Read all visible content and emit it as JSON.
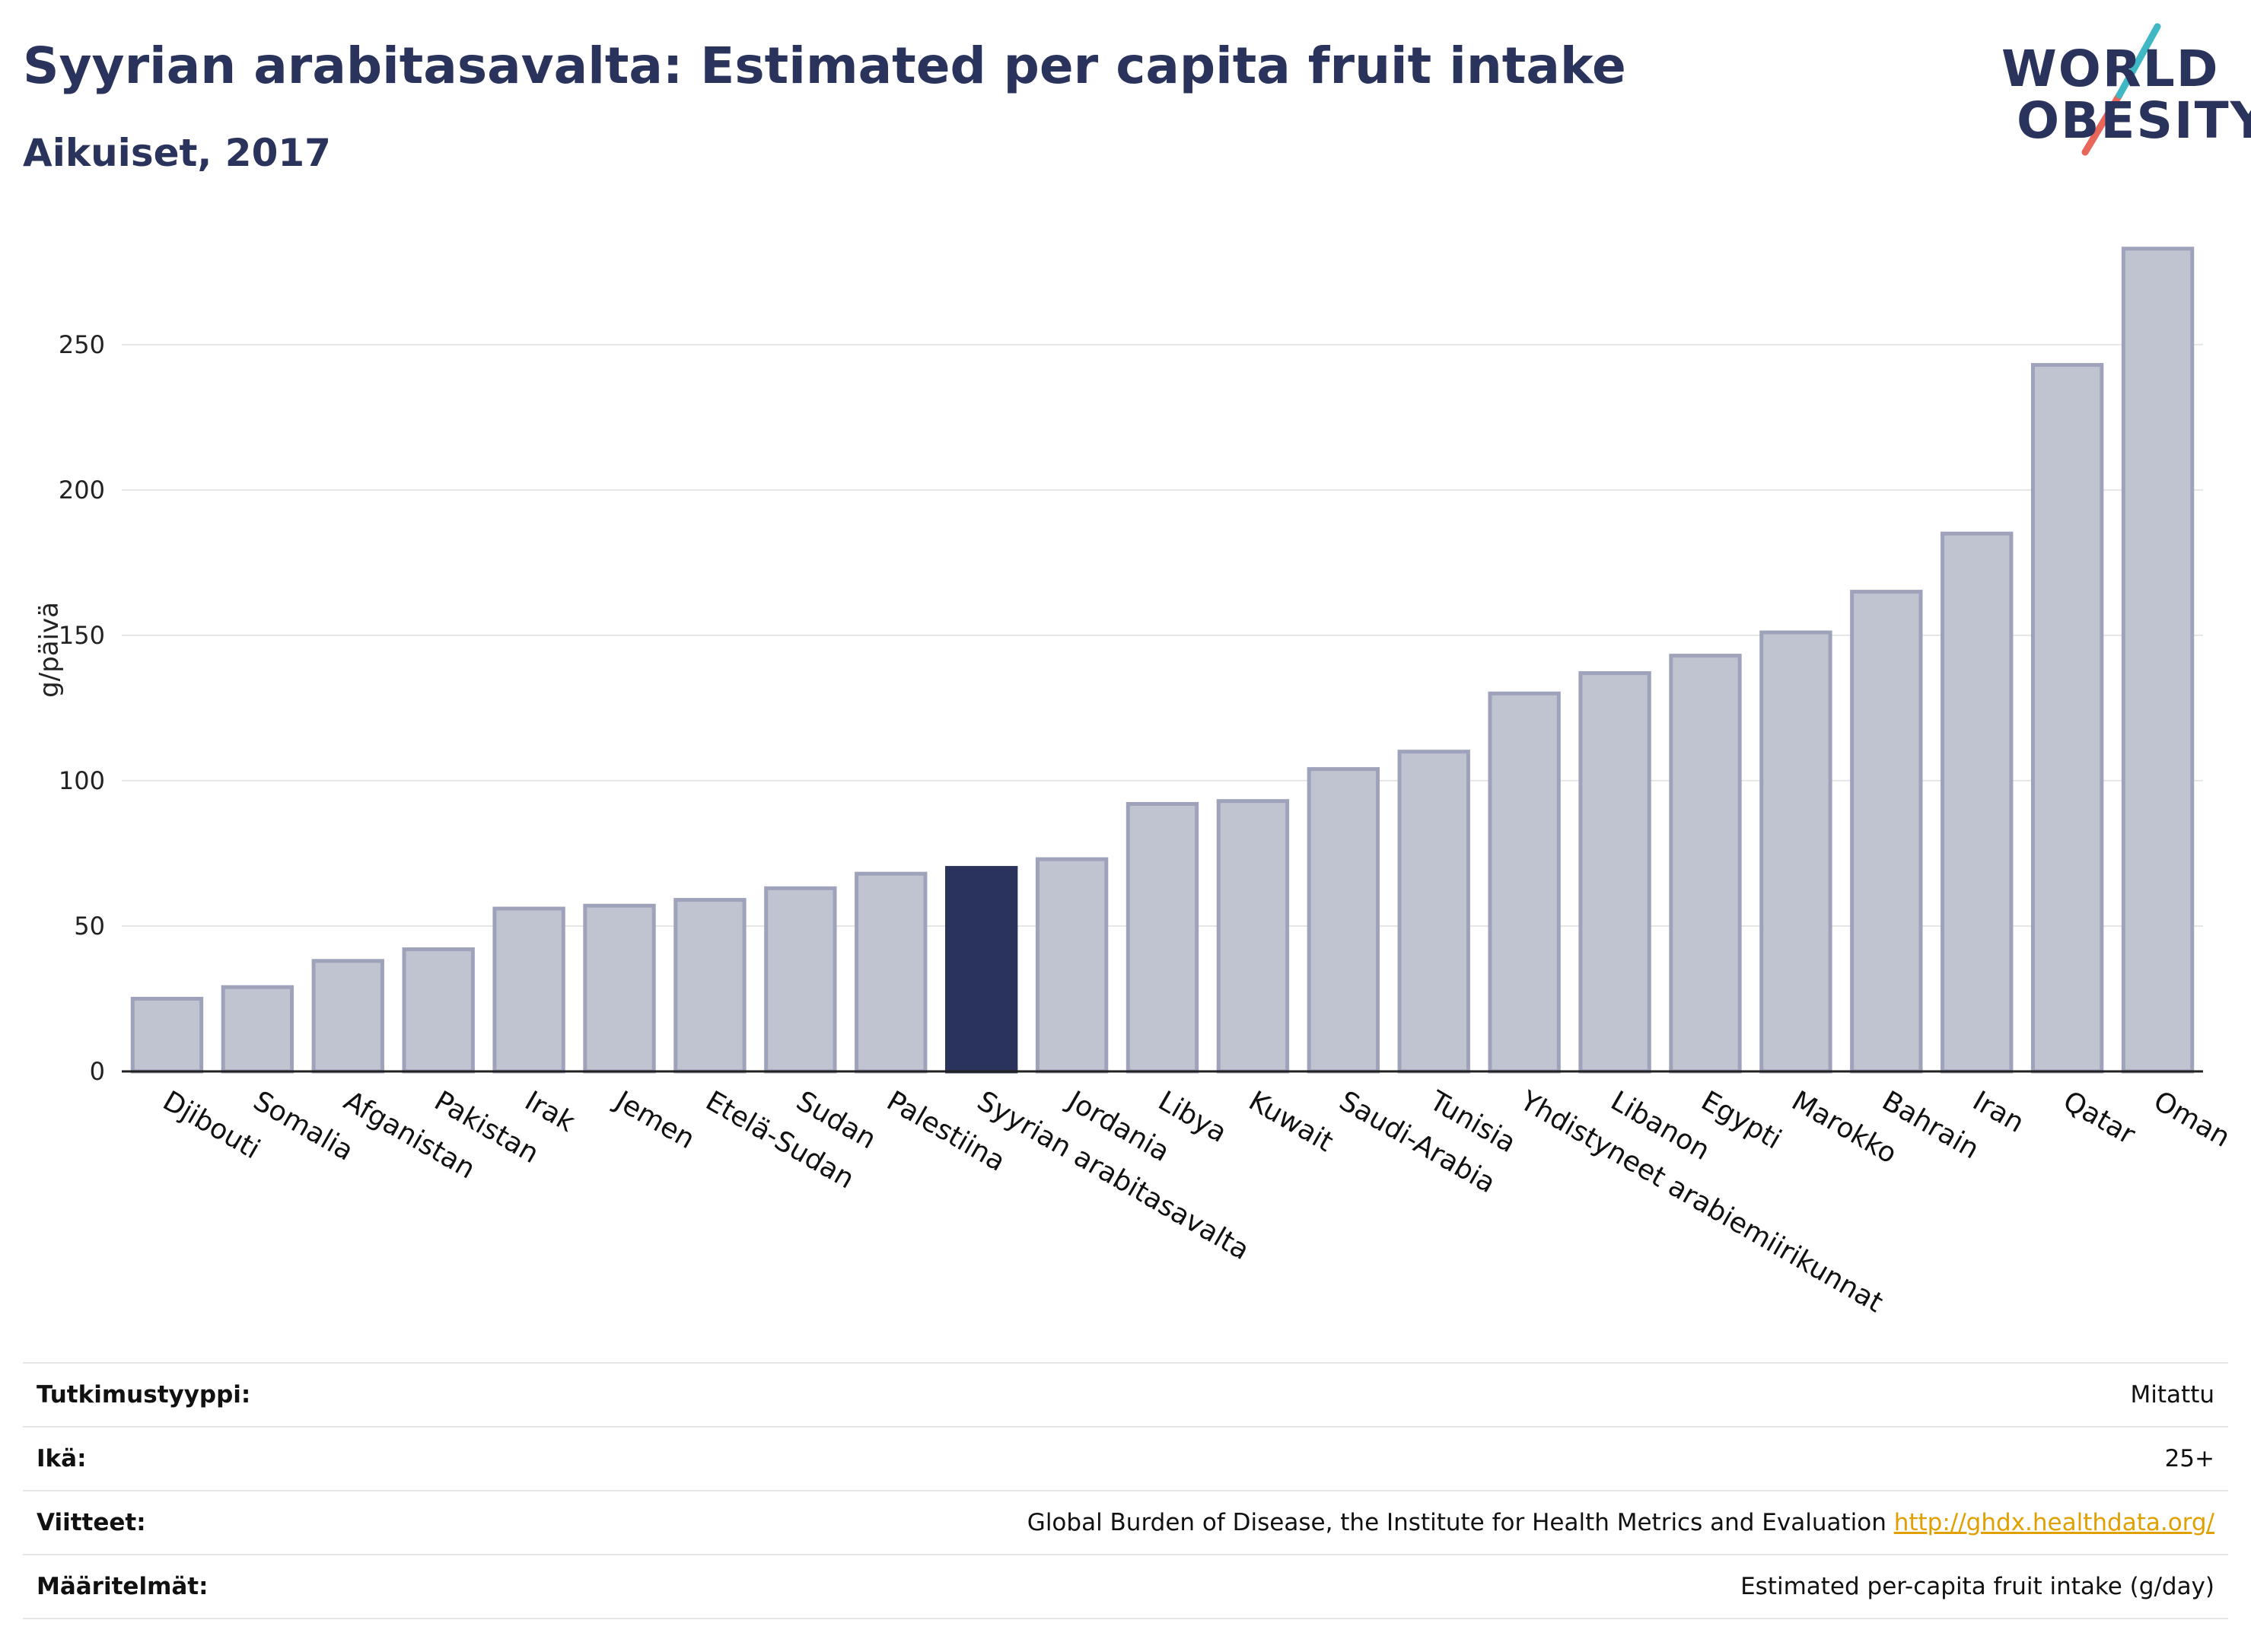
{
  "header": {
    "title": "Syyrian arabitasavalta: Estimated per capita fruit intake",
    "subtitle": "Aikuiset, 2017"
  },
  "logo": {
    "line1": "WORLD",
    "line2": "OBESITY"
  },
  "colors": {
    "bar_default": "#c0c3d0",
    "bar_border": "#9ea3bb",
    "bar_highlight": "#2a335c",
    "accent_teal": "#3fb8c4",
    "accent_red": "#e8665a",
    "link": "#e0a000"
  },
  "chart_data": {
    "type": "bar",
    "ylabel": "g/päivä",
    "ylim": [
      0,
      290
    ],
    "yticks": [
      0,
      50,
      100,
      150,
      200,
      250
    ],
    "grid": true,
    "highlight": "Syyrian arabitasavalta",
    "categories": [
      "Djibouti",
      "Somalia",
      "Afganistan",
      "Pakistan",
      "Irak",
      "Jemen",
      "Etelä-Sudan",
      "Sudan",
      "Palestiina",
      "Syyrian arabitasavalta",
      "Jordania",
      "Libya",
      "Kuwait",
      "Saudi-Arabia",
      "Tunisia",
      "Yhdistyneet arabiemiirikunnat",
      "Libanon",
      "Egypti",
      "Marokko",
      "Bahrain",
      "Iran",
      "Qatar",
      "Oman"
    ],
    "values": [
      25,
      29,
      38,
      42,
      56,
      57,
      59,
      63,
      68,
      70,
      73,
      92,
      93,
      104,
      110,
      130,
      137,
      143,
      151,
      165,
      185,
      243,
      283
    ]
  },
  "info": [
    {
      "label": "Tutkimustyyppi:",
      "value": "Mitattu"
    },
    {
      "label": "Ikä:",
      "value": "25+"
    },
    {
      "label": "Viitteet:",
      "value": "Global Burden of Disease, the Institute for Health Metrics and Evaluation",
      "link": "http://ghdx.healthdata.org/"
    },
    {
      "label": "Määritelmät:",
      "value": "Estimated per-capita fruit intake (g/day)"
    }
  ]
}
